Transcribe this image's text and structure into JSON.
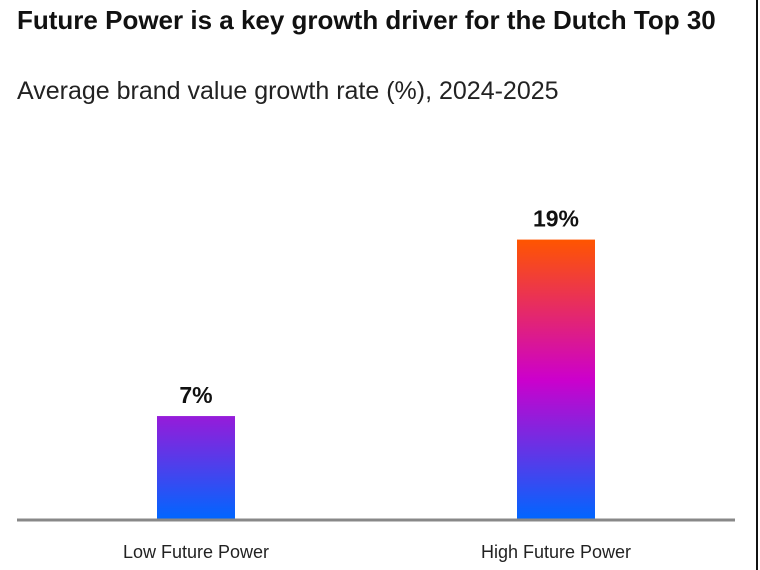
{
  "chart_data": {
    "type": "bar",
    "title": "Future Power is a key growth driver for the Dutch Top 30",
    "subtitle": "Average brand value growth rate (%), 2024-2025",
    "categories": [
      "Low Future Power",
      "High Future Power"
    ],
    "values": [
      7,
      19
    ],
    "data_labels": [
      "7%",
      "19%"
    ],
    "xlabel": "",
    "ylabel": "",
    "ylim": [
      0,
      20.4
    ],
    "grid": false,
    "colors": {
      "gradient_top": "#ff5500",
      "gradient_mid": "#cc00cc",
      "gradient_bottom": "#0066ff",
      "axis": "#888888"
    }
  }
}
